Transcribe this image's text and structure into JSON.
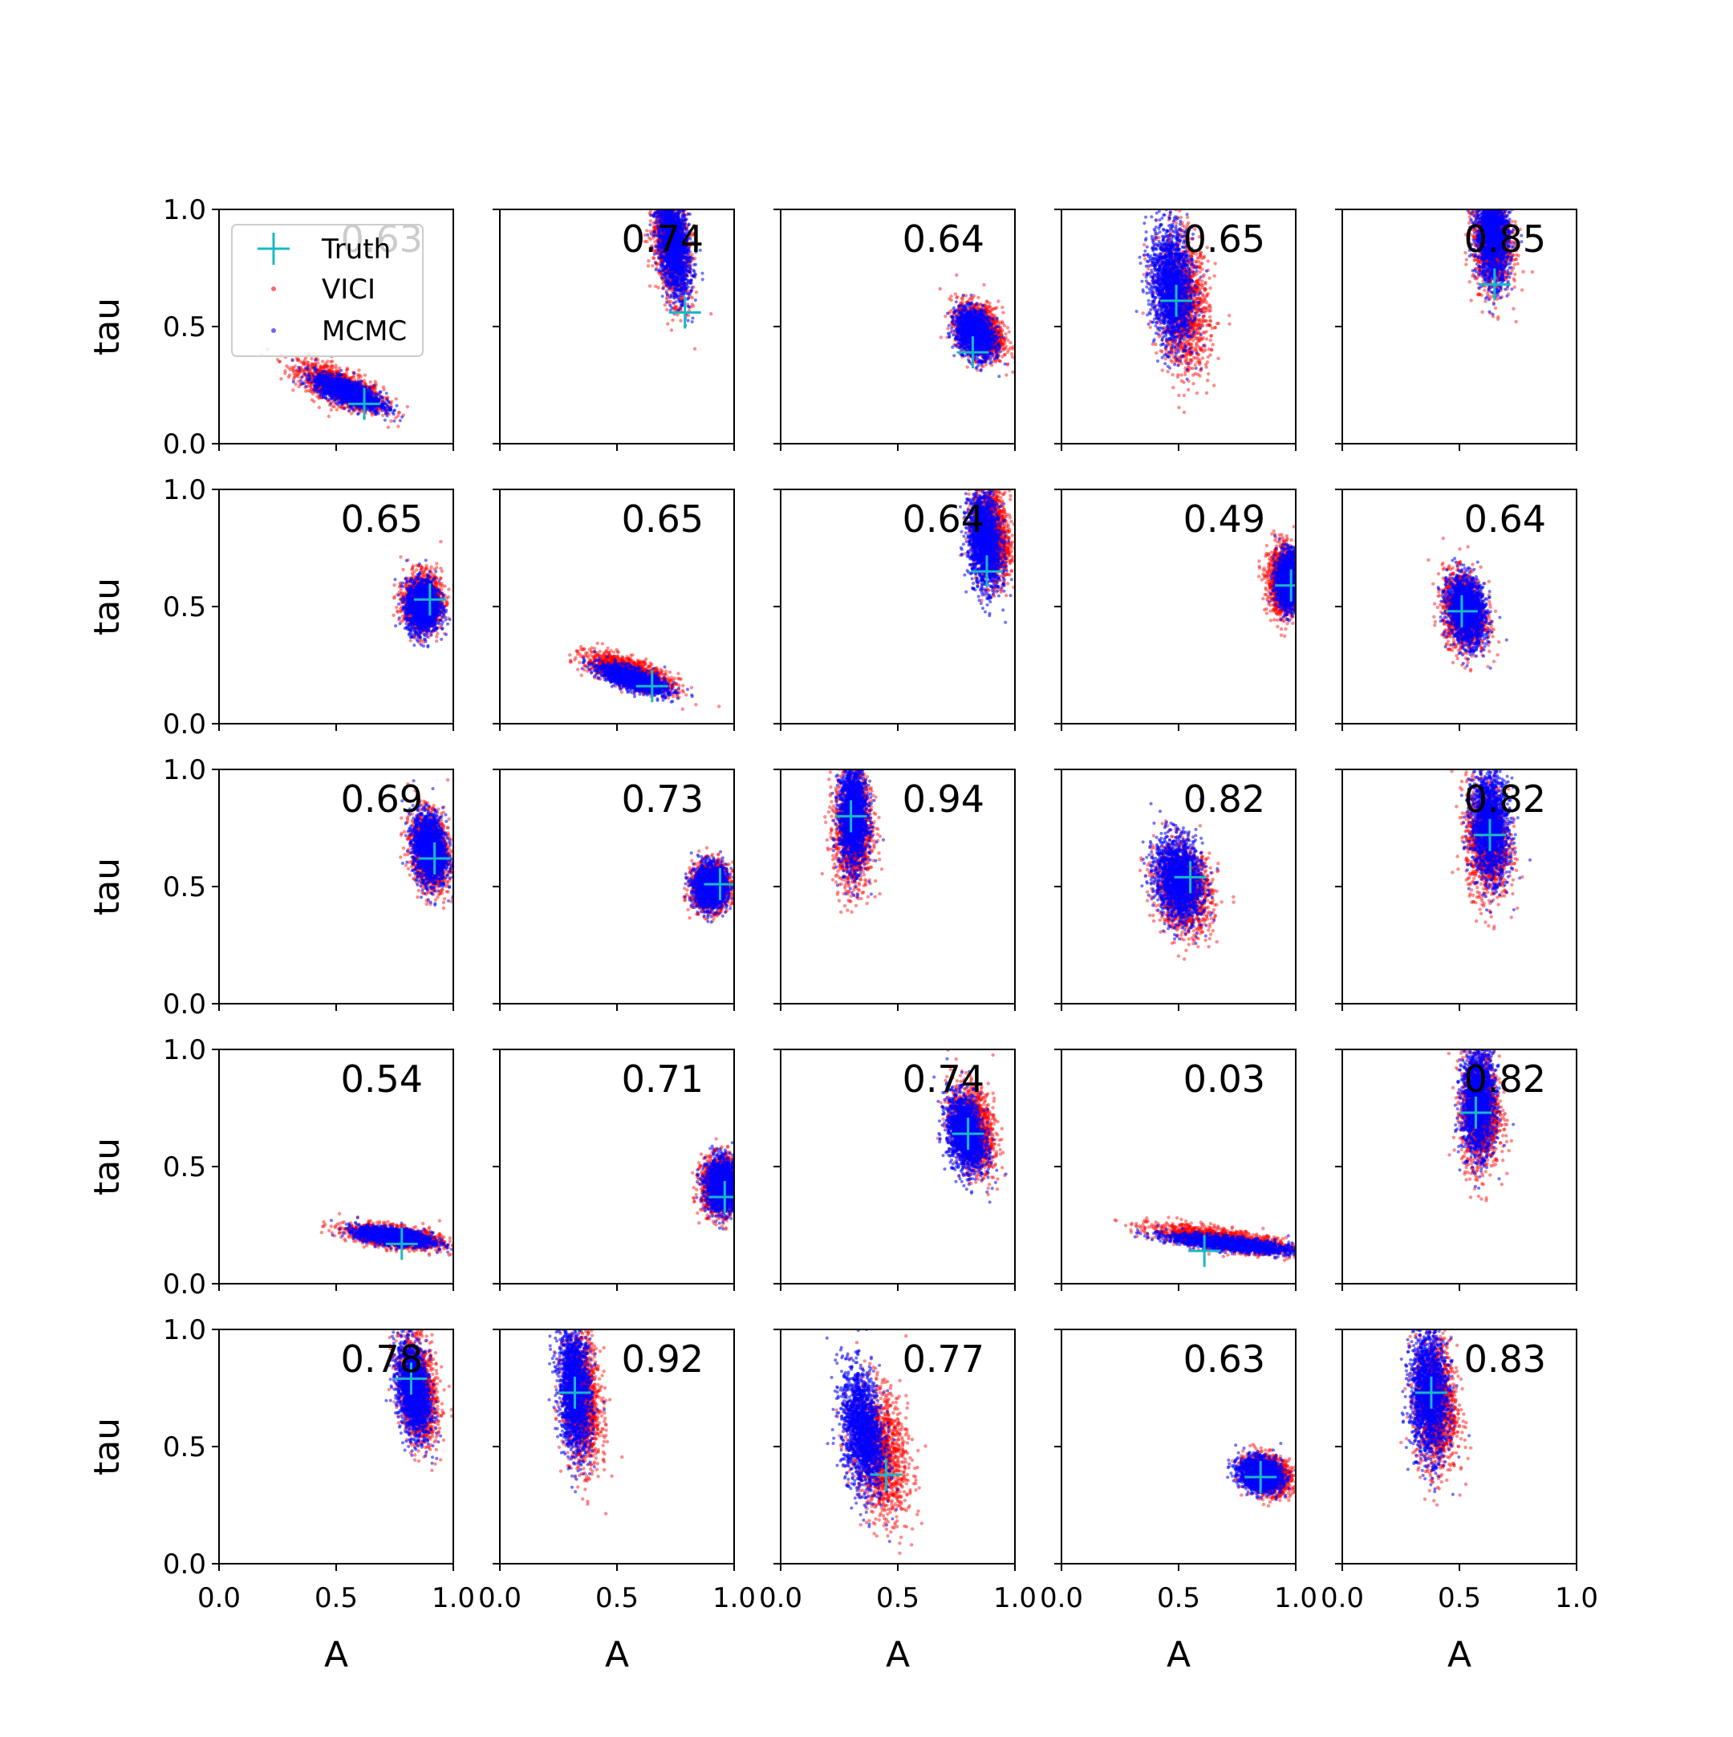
{
  "chart_data": {
    "type": "scatter",
    "layout": "5x5 grid of subplots",
    "xlabel": "A",
    "ylabel": "tau",
    "xlim": [
      0.0,
      1.0
    ],
    "ylim": [
      0.0,
      1.0
    ],
    "xticks": [
      "0.0",
      "0.5",
      "1.0"
    ],
    "yticks": [
      "0.0",
      "0.5",
      "1.0"
    ],
    "legend": {
      "placement": "upper-left of first panel",
      "entries": [
        {
          "label": "Truth",
          "marker": "cross",
          "color": "#1ab8c4"
        },
        {
          "label": "VICI",
          "marker": "dot",
          "color": "#ff0000"
        },
        {
          "label": "MCMC",
          "marker": "dot",
          "color": "#0000ff"
        }
      ]
    },
    "series": [
      {
        "name": "VICI",
        "color": "#ff0000"
      },
      {
        "name": "MCMC",
        "color": "#0000ff"
      },
      {
        "name": "Truth",
        "color": "#1ab8c4"
      }
    ],
    "panels": [
      {
        "score": "0.63",
        "truth": [
          0.62,
          0.17
        ],
        "vici": {
          "cx": 0.52,
          "cy": 0.24,
          "sx": 0.09,
          "sy": 0.05,
          "rho": -0.7
        },
        "mcmc": {
          "cx": 0.55,
          "cy": 0.22,
          "sx": 0.07,
          "sy": 0.035,
          "rho": -0.7
        }
      },
      {
        "score": "0.74",
        "truth": [
          0.79,
          0.56
        ],
        "vici": {
          "cx": 0.73,
          "cy": 0.86,
          "sx": 0.04,
          "sy": 0.12,
          "rho": -0.4
        },
        "mcmc": {
          "cx": 0.74,
          "cy": 0.85,
          "sx": 0.035,
          "sy": 0.11,
          "rho": -0.4
        }
      },
      {
        "score": "0.64",
        "truth": [
          0.82,
          0.39
        ],
        "vici": {
          "cx": 0.85,
          "cy": 0.48,
          "sx": 0.05,
          "sy": 0.06,
          "rho": -0.3
        },
        "mcmc": {
          "cx": 0.83,
          "cy": 0.47,
          "sx": 0.04,
          "sy": 0.05,
          "rho": -0.3
        }
      },
      {
        "score": "0.65",
        "truth": [
          0.49,
          0.61
        ],
        "vici": {
          "cx": 0.52,
          "cy": 0.6,
          "sx": 0.055,
          "sy": 0.14,
          "rho": -0.2
        },
        "mcmc": {
          "cx": 0.47,
          "cy": 0.67,
          "sx": 0.045,
          "sy": 0.13,
          "rho": -0.2
        }
      },
      {
        "score": "0.85",
        "truth": [
          0.65,
          0.68
        ],
        "vici": {
          "cx": 0.64,
          "cy": 0.88,
          "sx": 0.04,
          "sy": 0.11,
          "rho": -0.1
        },
        "mcmc": {
          "cx": 0.64,
          "cy": 0.89,
          "sx": 0.035,
          "sy": 0.1,
          "rho": -0.1
        }
      },
      {
        "score": "0.65",
        "truth": [
          0.9,
          0.53
        ],
        "vici": {
          "cx": 0.87,
          "cy": 0.52,
          "sx": 0.04,
          "sy": 0.06,
          "rho": 0.0
        },
        "mcmc": {
          "cx": 0.87,
          "cy": 0.5,
          "sx": 0.035,
          "sy": 0.055,
          "rho": 0.0
        }
      },
      {
        "score": "0.65",
        "truth": [
          0.65,
          0.16
        ],
        "vici": {
          "cx": 0.55,
          "cy": 0.22,
          "sx": 0.09,
          "sy": 0.04,
          "rho": -0.7
        },
        "mcmc": {
          "cx": 0.57,
          "cy": 0.19,
          "sx": 0.07,
          "sy": 0.03,
          "rho": -0.7
        }
      },
      {
        "score": "0.64",
        "truth": [
          0.88,
          0.65
        ],
        "vici": {
          "cx": 0.9,
          "cy": 0.8,
          "sx": 0.04,
          "sy": 0.1,
          "rho": -0.2
        },
        "mcmc": {
          "cx": 0.87,
          "cy": 0.78,
          "sx": 0.035,
          "sy": 0.1,
          "rho": -0.2
        }
      },
      {
        "score": "0.49",
        "truth": [
          0.98,
          0.59
        ],
        "vici": {
          "cx": 0.95,
          "cy": 0.61,
          "sx": 0.035,
          "sy": 0.07,
          "rho": 0.0
        },
        "mcmc": {
          "cx": 0.97,
          "cy": 0.61,
          "sx": 0.025,
          "sy": 0.06,
          "rho": 0.0
        }
      },
      {
        "score": "0.64",
        "truth": [
          0.51,
          0.48
        ],
        "vici": {
          "cx": 0.52,
          "cy": 0.48,
          "sx": 0.045,
          "sy": 0.08,
          "rho": -0.2
        },
        "mcmc": {
          "cx": 0.53,
          "cy": 0.48,
          "sx": 0.04,
          "sy": 0.07,
          "rho": -0.2
        }
      },
      {
        "score": "0.69",
        "truth": [
          0.92,
          0.62
        ],
        "vici": {
          "cx": 0.9,
          "cy": 0.65,
          "sx": 0.04,
          "sy": 0.08,
          "rho": -0.2
        },
        "mcmc": {
          "cx": 0.9,
          "cy": 0.66,
          "sx": 0.035,
          "sy": 0.075,
          "rho": -0.2
        }
      },
      {
        "score": "0.73",
        "truth": [
          0.94,
          0.51
        ],
        "vici": {
          "cx": 0.9,
          "cy": 0.5,
          "sx": 0.04,
          "sy": 0.05,
          "rho": 0.0
        },
        "mcmc": {
          "cx": 0.9,
          "cy": 0.5,
          "sx": 0.035,
          "sy": 0.045,
          "rho": 0.0
        }
      },
      {
        "score": "0.94",
        "truth": [
          0.3,
          0.8
        ],
        "vici": {
          "cx": 0.31,
          "cy": 0.75,
          "sx": 0.04,
          "sy": 0.13,
          "rho": 0.0
        },
        "mcmc": {
          "cx": 0.31,
          "cy": 0.8,
          "sx": 0.03,
          "sy": 0.11,
          "rho": 0.0
        }
      },
      {
        "score": "0.82",
        "truth": [
          0.55,
          0.54
        ],
        "vici": {
          "cx": 0.52,
          "cy": 0.49,
          "sx": 0.06,
          "sy": 0.09,
          "rho": -0.2
        },
        "mcmc": {
          "cx": 0.5,
          "cy": 0.53,
          "sx": 0.05,
          "sy": 0.09,
          "rho": -0.2
        }
      },
      {
        "score": "0.82",
        "truth": [
          0.63,
          0.72
        ],
        "vici": {
          "cx": 0.62,
          "cy": 0.7,
          "sx": 0.045,
          "sy": 0.12,
          "rho": -0.1
        },
        "mcmc": {
          "cx": 0.63,
          "cy": 0.76,
          "sx": 0.04,
          "sy": 0.11,
          "rho": -0.1
        }
      },
      {
        "score": "0.54",
        "truth": [
          0.78,
          0.17
        ],
        "vici": {
          "cx": 0.75,
          "cy": 0.2,
          "sx": 0.1,
          "sy": 0.025,
          "rho": -0.5
        },
        "mcmc": {
          "cx": 0.75,
          "cy": 0.2,
          "sx": 0.08,
          "sy": 0.02,
          "rho": -0.5
        }
      },
      {
        "score": "0.71",
        "truth": [
          0.96,
          0.37
        ],
        "vici": {
          "cx": 0.94,
          "cy": 0.42,
          "sx": 0.04,
          "sy": 0.06,
          "rho": 0.0
        },
        "mcmc": {
          "cx": 0.95,
          "cy": 0.42,
          "sx": 0.035,
          "sy": 0.055,
          "rho": 0.0
        }
      },
      {
        "score": "0.74",
        "truth": [
          0.8,
          0.64
        ],
        "vici": {
          "cx": 0.82,
          "cy": 0.66,
          "sx": 0.045,
          "sy": 0.09,
          "rho": -0.3
        },
        "mcmc": {
          "cx": 0.79,
          "cy": 0.64,
          "sx": 0.04,
          "sy": 0.08,
          "rho": -0.3
        }
      },
      {
        "score": "0.03",
        "truth": [
          0.61,
          0.14
        ],
        "vici": {
          "cx": 0.68,
          "cy": 0.19,
          "sx": 0.15,
          "sy": 0.03,
          "rho": -0.7
        },
        "mcmc": {
          "cx": 0.72,
          "cy": 0.17,
          "sx": 0.13,
          "sy": 0.02,
          "rho": -0.7
        }
      },
      {
        "score": "0.82",
        "truth": [
          0.57,
          0.73
        ],
        "vici": {
          "cx": 0.59,
          "cy": 0.73,
          "sx": 0.04,
          "sy": 0.12,
          "rho": 0.0
        },
        "mcmc": {
          "cx": 0.58,
          "cy": 0.78,
          "sx": 0.035,
          "sy": 0.11,
          "rho": 0.0
        }
      },
      {
        "score": "0.78",
        "truth": [
          0.82,
          0.79
        ],
        "vici": {
          "cx": 0.85,
          "cy": 0.74,
          "sx": 0.04,
          "sy": 0.11,
          "rho": -0.3
        },
        "mcmc": {
          "cx": 0.83,
          "cy": 0.74,
          "sx": 0.035,
          "sy": 0.1,
          "rho": -0.3
        }
      },
      {
        "score": "0.92",
        "truth": [
          0.32,
          0.73
        ],
        "vici": {
          "cx": 0.35,
          "cy": 0.7,
          "sx": 0.04,
          "sy": 0.14,
          "rho": -0.2
        },
        "mcmc": {
          "cx": 0.32,
          "cy": 0.74,
          "sx": 0.035,
          "sy": 0.13,
          "rho": -0.2
        }
      },
      {
        "score": "0.77",
        "truth": [
          0.45,
          0.38
        ],
        "vici": {
          "cx": 0.42,
          "cy": 0.48,
          "sx": 0.06,
          "sy": 0.14,
          "rho": -0.3
        },
        "mcmc": {
          "cx": 0.35,
          "cy": 0.57,
          "sx": 0.045,
          "sy": 0.13,
          "rho": -0.3
        }
      },
      {
        "score": "0.63",
        "truth": [
          0.85,
          0.37
        ],
        "vici": {
          "cx": 0.88,
          "cy": 0.38,
          "sx": 0.05,
          "sy": 0.04,
          "rho": -0.2
        },
        "mcmc": {
          "cx": 0.85,
          "cy": 0.38,
          "sx": 0.045,
          "sy": 0.035,
          "rho": -0.2
        }
      },
      {
        "score": "0.83",
        "truth": [
          0.38,
          0.73
        ],
        "vici": {
          "cx": 0.4,
          "cy": 0.68,
          "sx": 0.045,
          "sy": 0.14,
          "rho": -0.1
        },
        "mcmc": {
          "cx": 0.37,
          "cy": 0.72,
          "sx": 0.04,
          "sy": 0.13,
          "rho": -0.1
        }
      }
    ]
  }
}
